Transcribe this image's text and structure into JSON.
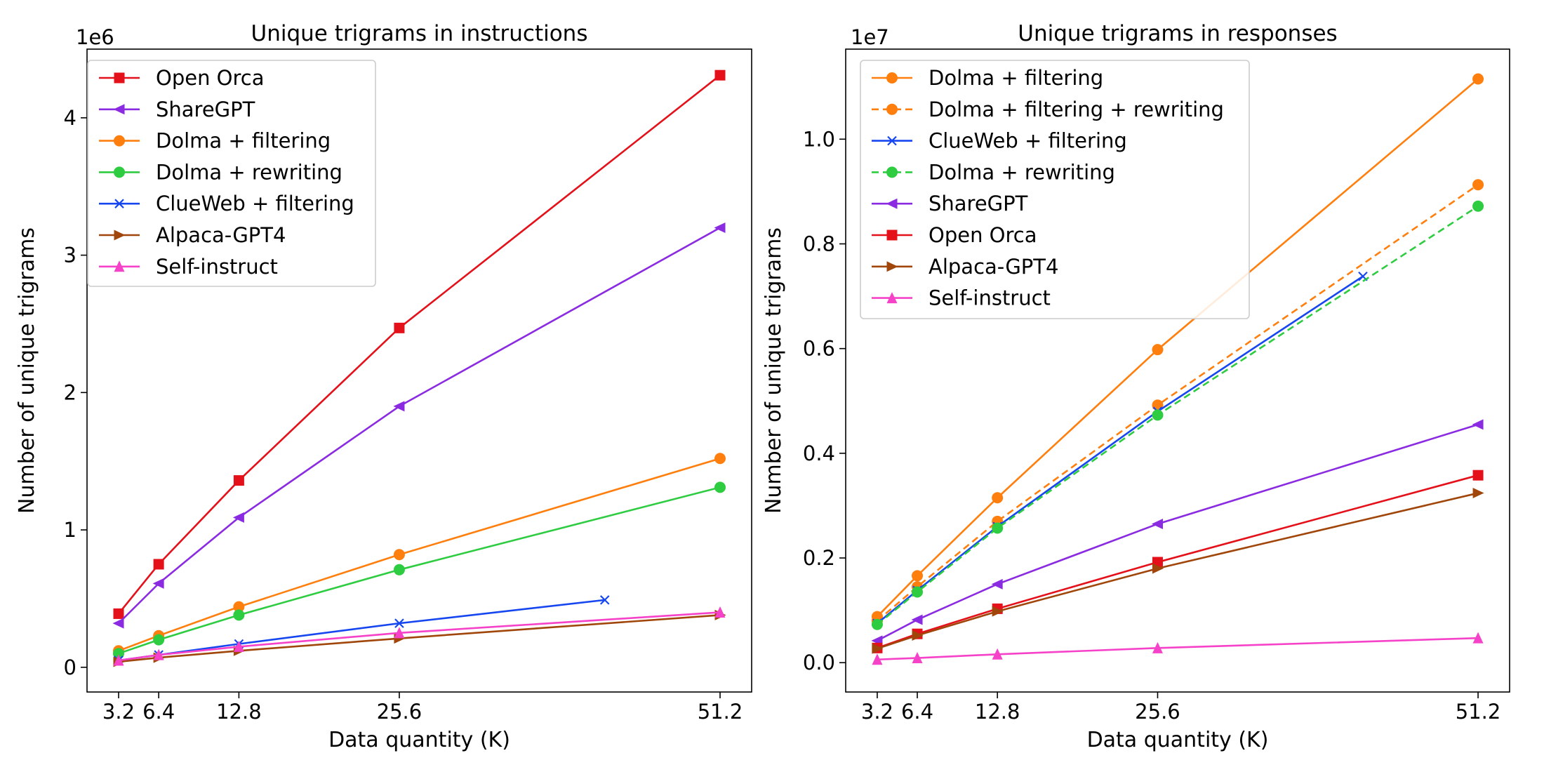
{
  "chart_data": [
    {
      "type": "line",
      "title": "Unique trigrams in instructions",
      "xlabel": "Data quantity (K)",
      "ylabel": "Number of unique trigrams",
      "offset_label": "1e6",
      "xticks": [
        3.2,
        6.4,
        12.8,
        25.6,
        51.2
      ],
      "xtick_labels": [
        "3.2",
        "6.4",
        "12.8",
        "25.6",
        "51.2"
      ],
      "yticks": [
        0,
        1,
        2,
        3,
        4
      ],
      "ytick_labels": [
        "0",
        "1",
        "2",
        "3",
        "4"
      ],
      "xlim": [
        0.68,
        53.72
      ],
      "ylim": [
        -0.18,
        4.5
      ],
      "grid": false,
      "legend_position": "top-left",
      "series": [
        {
          "name": "Open Orca",
          "color": "#e4111a",
          "marker": "square",
          "dashed": false,
          "x": [
            3.2,
            6.4,
            12.8,
            25.6,
            51.2
          ],
          "y": [
            0.39,
            0.75,
            1.36,
            2.47,
            4.31
          ]
        },
        {
          "name": "ShareGPT",
          "color": "#8a2be2",
          "marker": "triangle-left",
          "dashed": false,
          "x": [
            3.2,
            6.4,
            12.8,
            25.6,
            51.2
          ],
          "y": [
            0.32,
            0.61,
            1.09,
            1.9,
            3.2
          ]
        },
        {
          "name": "Dolma + filtering",
          "color": "#ff7f0e",
          "marker": "circle",
          "dashed": false,
          "x": [
            3.2,
            6.4,
            12.8,
            25.6,
            51.2
          ],
          "y": [
            0.12,
            0.23,
            0.44,
            0.82,
            1.52
          ]
        },
        {
          "name": "Dolma + rewriting",
          "color": "#2ecc40",
          "marker": "circle",
          "dashed": false,
          "x": [
            3.2,
            6.4,
            12.8,
            25.6,
            51.2
          ],
          "y": [
            0.1,
            0.2,
            0.38,
            0.71,
            1.31
          ]
        },
        {
          "name": "ClueWeb + filtering",
          "color": "#1646ef",
          "marker": "x",
          "dashed": false,
          "x": [
            3.2,
            6.4,
            12.8,
            25.6,
            42
          ],
          "y": [
            0.05,
            0.09,
            0.17,
            0.32,
            0.49
          ]
        },
        {
          "name": "Alpaca-GPT4",
          "color": "#a0460a",
          "marker": "triangle-right",
          "dashed": false,
          "x": [
            3.2,
            6.4,
            12.8,
            25.6,
            51.2
          ],
          "y": [
            0.04,
            0.07,
            0.12,
            0.21,
            0.38
          ]
        },
        {
          "name": "Self-instruct",
          "color": "#f542c8",
          "marker": "triangle-up",
          "dashed": false,
          "x": [
            3.2,
            6.4,
            12.8,
            25.6,
            51.2
          ],
          "y": [
            0.05,
            0.09,
            0.15,
            0.25,
            0.4
          ]
        }
      ]
    },
    {
      "type": "line",
      "title": "Unique trigrams in responses",
      "xlabel": "Data quantity (K)",
      "ylabel": "Number of unique trigrams",
      "offset_label": "1e7",
      "xticks": [
        3.2,
        6.4,
        12.8,
        25.6,
        51.2
      ],
      "xtick_labels": [
        "3.2",
        "6.4",
        "12.8",
        "25.6",
        "51.2"
      ],
      "yticks": [
        0,
        0.2,
        0.4,
        0.6,
        0.8,
        1.0
      ],
      "ytick_labels": [
        "0.0",
        "0.2",
        "0.4",
        "0.6",
        "0.8",
        "1.0"
      ],
      "xlim": [
        0.68,
        53.72
      ],
      "ylim": [
        -0.056,
        1.172
      ],
      "grid": false,
      "legend_position": "top-left",
      "series": [
        {
          "name": "Dolma + filtering",
          "color": "#ff7f0e",
          "marker": "circle",
          "dashed": false,
          "x": [
            3.2,
            6.4,
            12.8,
            25.6,
            51.2
          ],
          "y": [
            0.088,
            0.166,
            0.315,
            0.598,
            1.115
          ]
        },
        {
          "name": "Dolma + filtering + rewriting",
          "color": "#ff7f0e",
          "marker": "circle",
          "dashed": true,
          "x": [
            3.2,
            6.4,
            12.8,
            25.6,
            51.2
          ],
          "y": [
            0.08,
            0.145,
            0.27,
            0.492,
            0.913
          ]
        },
        {
          "name": "ClueWeb + filtering",
          "color": "#1646ef",
          "marker": "x",
          "dashed": false,
          "x": [
            3.2,
            6.4,
            12.8,
            25.6,
            42
          ],
          "y": [
            0.075,
            0.138,
            0.26,
            0.48,
            0.738
          ]
        },
        {
          "name": "Dolma + rewriting",
          "color": "#2ecc40",
          "marker": "circle",
          "dashed": true,
          "x": [
            3.2,
            6.4,
            12.8,
            25.6,
            51.2
          ],
          "y": [
            0.073,
            0.135,
            0.257,
            0.473,
            0.872
          ]
        },
        {
          "name": "ShareGPT",
          "color": "#8a2be2",
          "marker": "triangle-left",
          "dashed": false,
          "x": [
            3.2,
            6.4,
            12.8,
            25.6,
            51.2
          ],
          "y": [
            0.042,
            0.082,
            0.15,
            0.265,
            0.455
          ]
        },
        {
          "name": "Open Orca",
          "color": "#e4111a",
          "marker": "square",
          "dashed": false,
          "x": [
            3.2,
            6.4,
            12.8,
            25.6,
            51.2
          ],
          "y": [
            0.028,
            0.055,
            0.103,
            0.192,
            0.358
          ]
        },
        {
          "name": "Alpaca-GPT4",
          "color": "#a0460a",
          "marker": "triangle-right",
          "dashed": false,
          "x": [
            3.2,
            6.4,
            12.8,
            25.6,
            51.2
          ],
          "y": [
            0.027,
            0.052,
            0.098,
            0.18,
            0.324
          ]
        },
        {
          "name": "Self-instruct",
          "color": "#f542c8",
          "marker": "triangle-up",
          "dashed": false,
          "x": [
            3.2,
            6.4,
            12.8,
            25.6,
            51.2
          ],
          "y": [
            0.006,
            0.009,
            0.016,
            0.028,
            0.047
          ]
        }
      ]
    }
  ]
}
